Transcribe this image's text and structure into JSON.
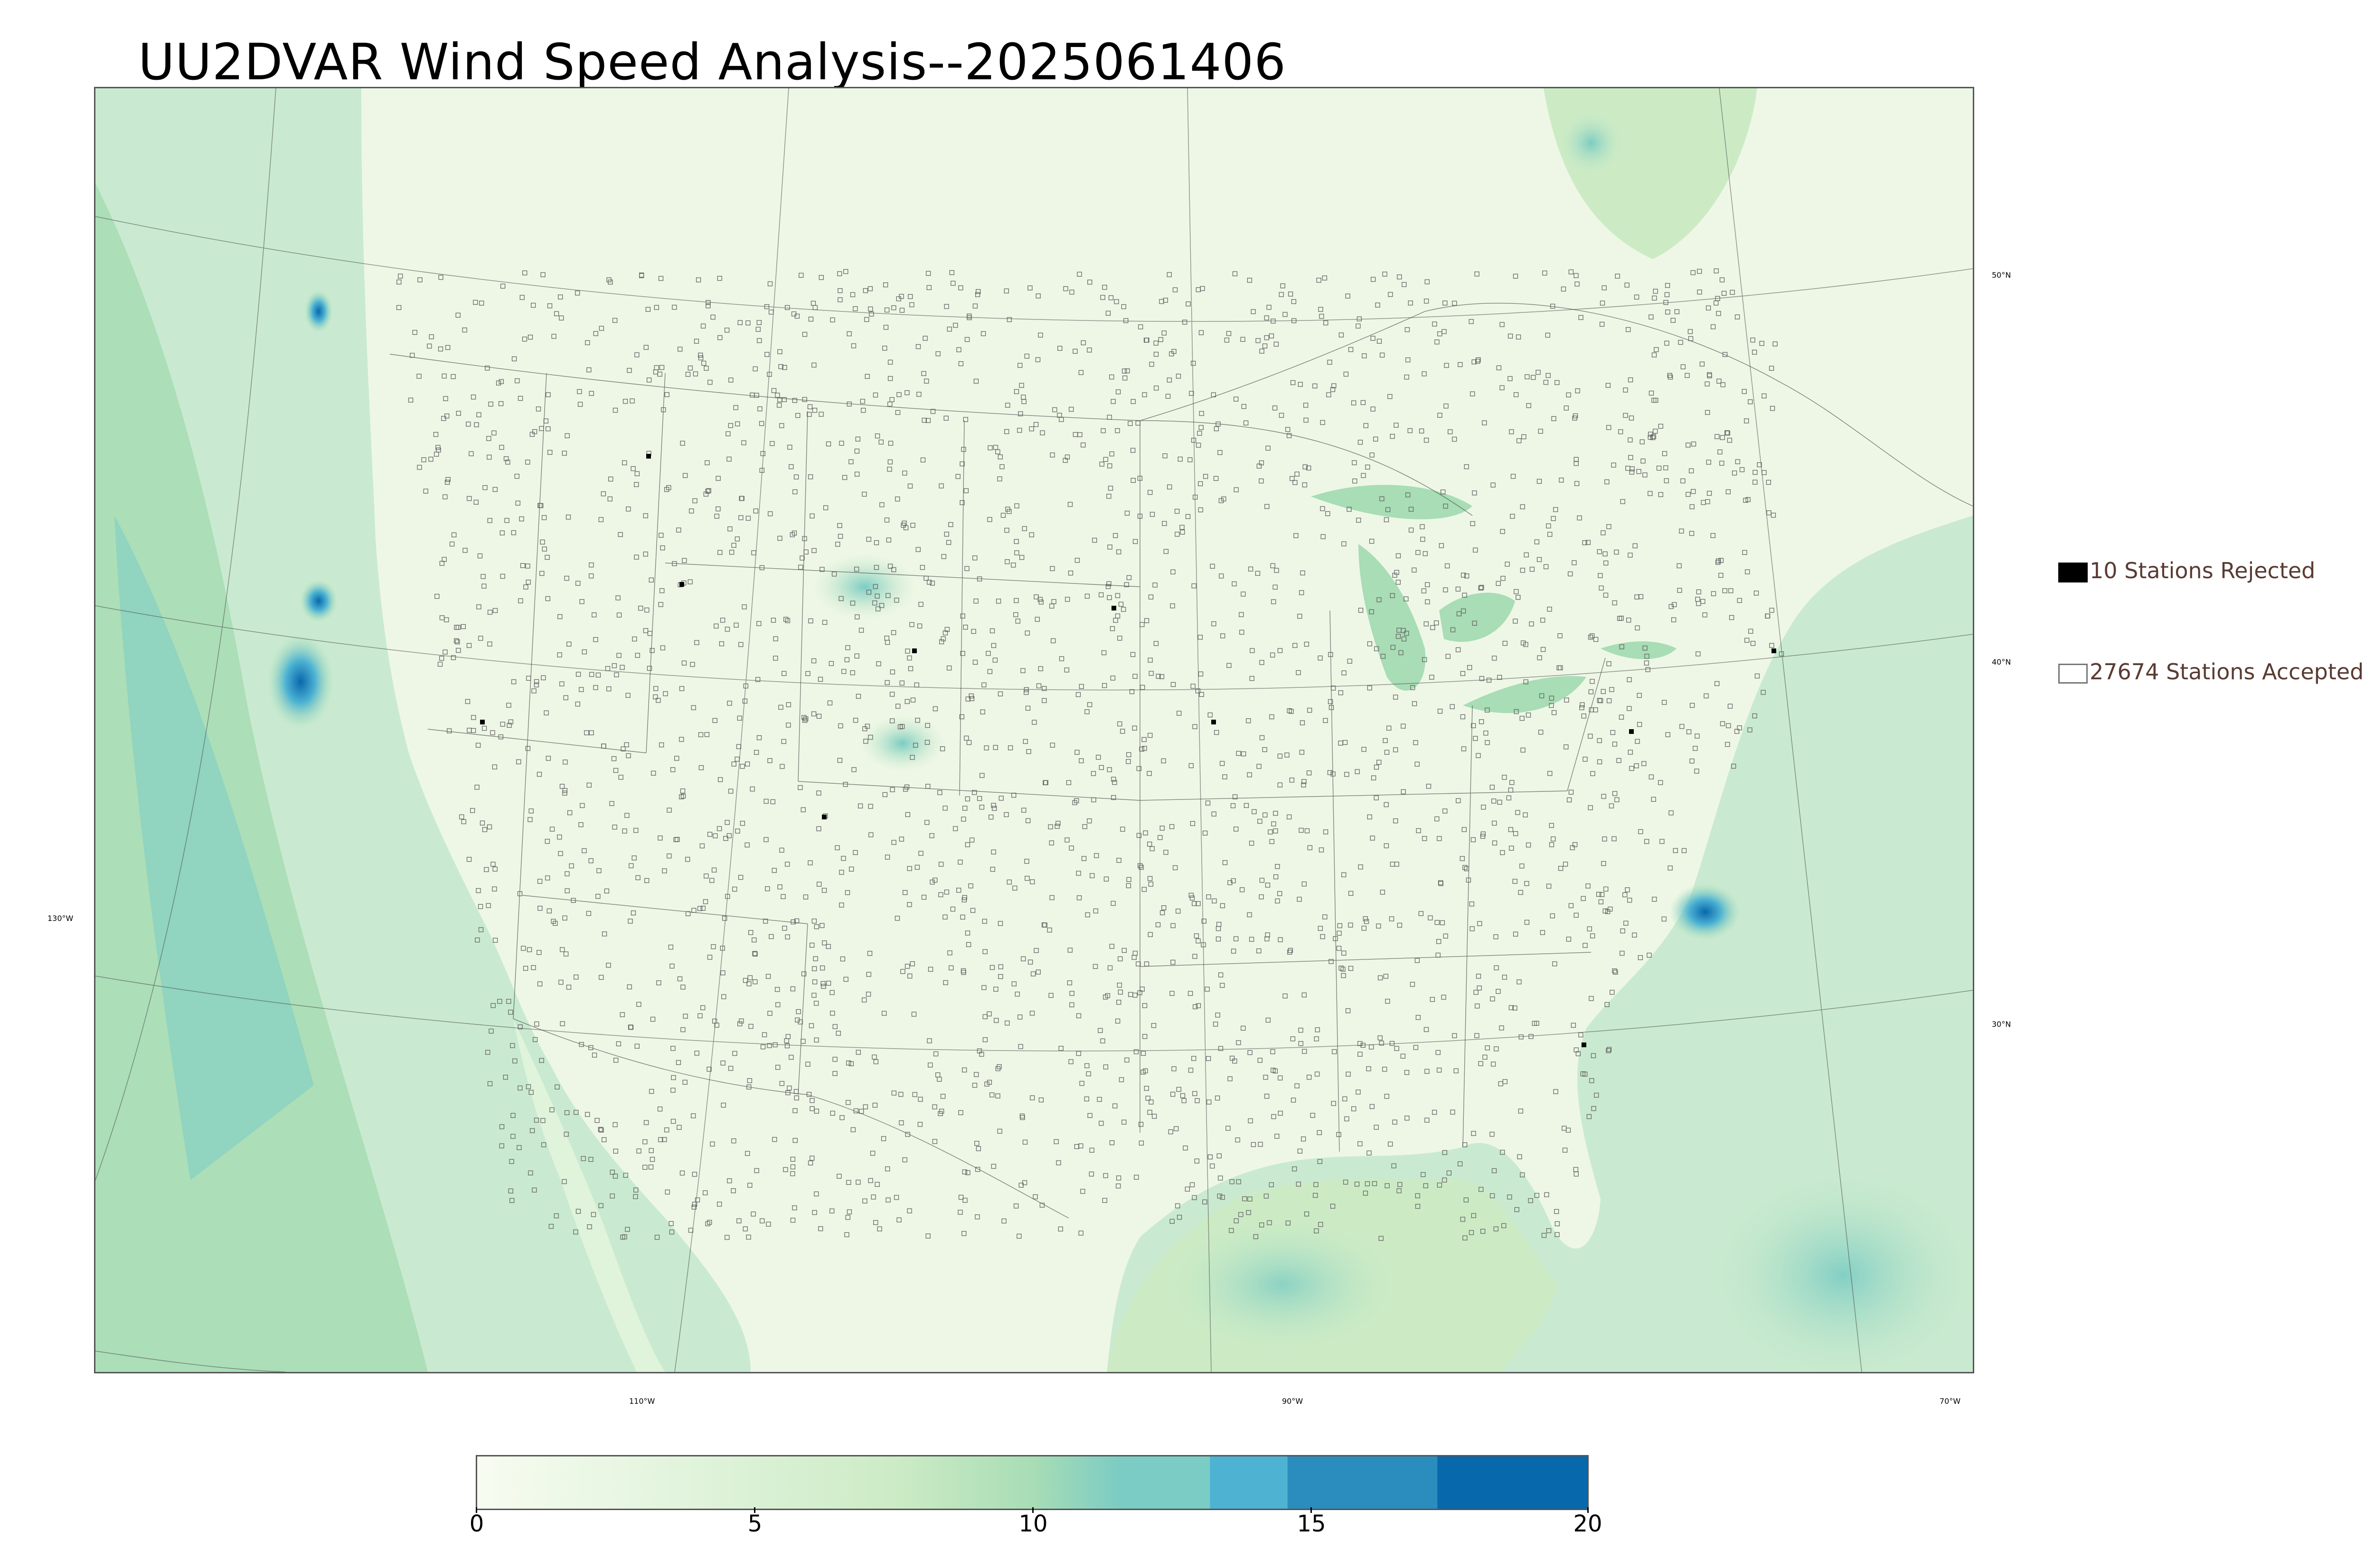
{
  "title": "UU2DVAR Wind Speed Analysis--2025061406",
  "legend": {
    "rejected_label": "10 Stations Rejected",
    "accepted_label": "27674 Stations Accepted"
  },
  "latitude_labels": [
    "50°N",
    "40°N",
    "30°N"
  ],
  "longitude_labels": [
    "130°W",
    "110°W",
    "90°W",
    "70°W"
  ],
  "colorbar": {
    "ticks": [
      "0",
      "5",
      "10",
      "15",
      "20"
    ],
    "colors": [
      "#f7fcf0",
      "#e0f3db",
      "#ccebc5",
      "#a8ddb5",
      "#7bccc4",
      "#4eb3d3",
      "#2b8cbe",
      "#0868ac"
    ]
  },
  "colors": {
    "land": "#eef7e6",
    "ocean": "#c9ead0",
    "strong_wind": "#2b8cbe",
    "station_outline": "#666666",
    "rejected": "#000000",
    "legend_text": "#5a3b32"
  }
}
